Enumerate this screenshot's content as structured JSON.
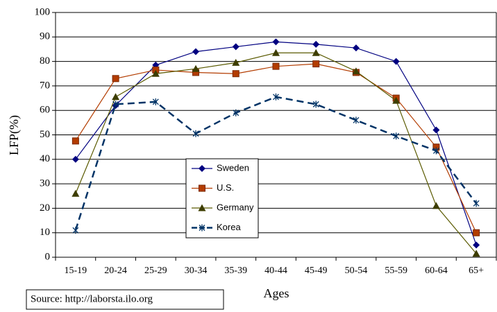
{
  "chart_data": {
    "type": "line",
    "y_label": "LFP(%)",
    "x_label": "Ages",
    "source": "Source: http://laborsta.ilo.org",
    "categories": [
      "15-19",
      "20-24",
      "25-29",
      "30-34",
      "35-39",
      "40-44",
      "45-49",
      "50-54",
      "55-59",
      "60-64",
      "65+"
    ],
    "ylim": [
      0,
      100
    ],
    "yticks": [
      0,
      10,
      20,
      30,
      40,
      50,
      60,
      70,
      80,
      90,
      100
    ],
    "grid": true,
    "series": [
      {
        "name": "Sweden",
        "color": "#000080",
        "marker": "diamond",
        "line_style": "solid",
        "values": [
          40,
          62,
          78.5,
          84,
          86,
          88,
          87,
          85.5,
          80,
          52,
          5
        ]
      },
      {
        "name": "U.S.",
        "color": "#b33c00",
        "marker": "square",
        "line_style": "solid",
        "values": [
          47.5,
          73,
          76.5,
          75.5,
          75,
          78,
          79,
          75.5,
          65,
          45,
          10
        ]
      },
      {
        "name": "Germany",
        "color": "#5a5a00",
        "marker": "triangle",
        "line_style": "solid",
        "values": [
          26,
          65.5,
          75,
          77,
          79.5,
          83.5,
          83.5,
          76,
          64,
          21,
          1.5
        ]
      },
      {
        "name": "Korea",
        "color": "#003366",
        "marker": "asterisk",
        "line_style": "dashed",
        "values": [
          11,
          62.5,
          63.5,
          50.5,
          59,
          65.5,
          62.5,
          56,
          49.5,
          43.5,
          22
        ]
      }
    ]
  }
}
